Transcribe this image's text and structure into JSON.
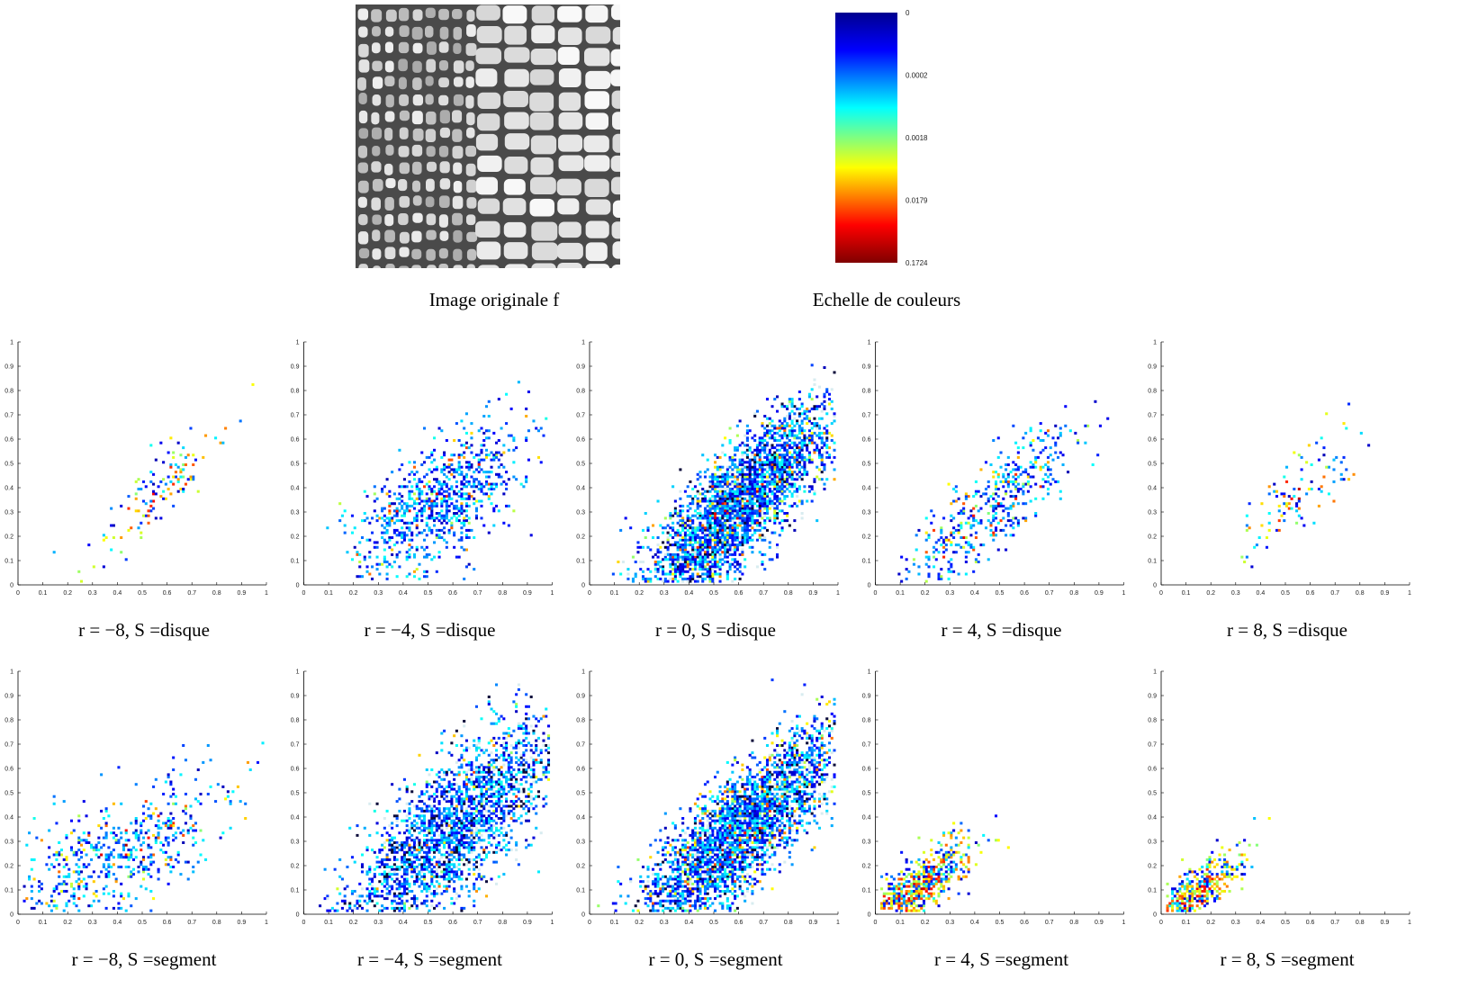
{
  "figure": {
    "image_caption": "Image originale f",
    "colorbar": {
      "caption": "Echelle de couleurs",
      "ticks": [
        0,
        0.0002,
        0.0018,
        0.0179,
        0.1724
      ]
    },
    "axis": {
      "xlim": [
        0,
        1
      ],
      "ylim": [
        0,
        1
      ],
      "xticks": [
        0,
        0.1,
        0.2,
        0.3,
        0.4,
        0.5,
        0.6,
        0.7,
        0.8,
        0.9,
        1
      ],
      "yticks": [
        0,
        0.1,
        0.2,
        0.3,
        0.4,
        0.5,
        0.6,
        0.7,
        0.8,
        0.9,
        1
      ]
    },
    "panels": [
      {
        "caption": "r = −8, S =disque"
      },
      {
        "caption": "r = −4, S =disque"
      },
      {
        "caption": "r = 0, S =disque"
      },
      {
        "caption": "r = 4, S =disque"
      },
      {
        "caption": "r = 8, S =disque"
      },
      {
        "caption": "r = −8, S =segment"
      },
      {
        "caption": "r = −4, S =segment"
      },
      {
        "caption": "r = 0, S =segment"
      },
      {
        "caption": "r = 4, S =segment"
      },
      {
        "caption": "r = 8, S =segment"
      }
    ]
  }
}
